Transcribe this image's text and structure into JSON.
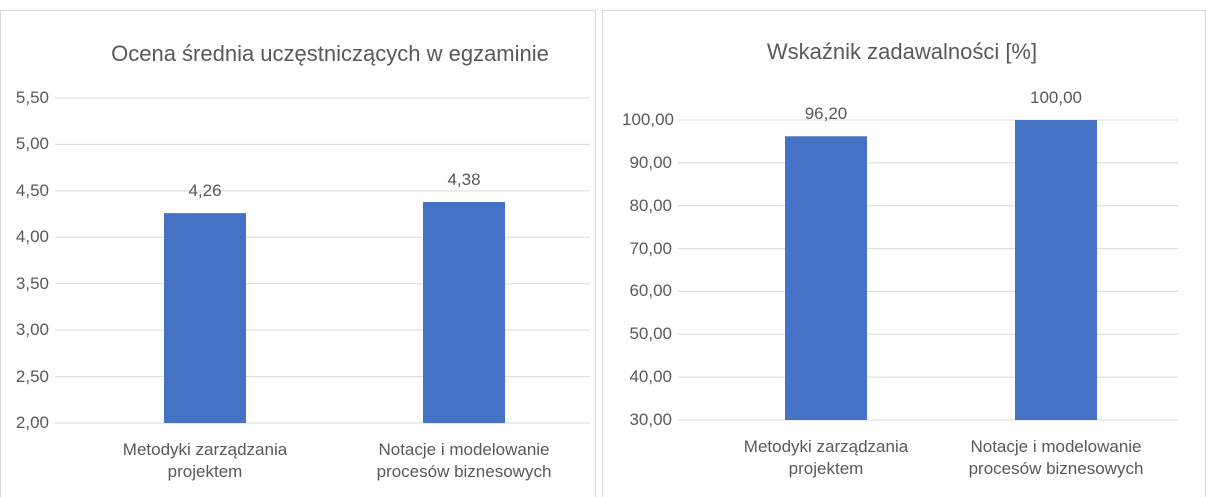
{
  "chart_data": [
    {
      "type": "bar",
      "title": "Ocena średnia uczęstniczących w egzaminie",
      "categories": [
        "Metodyki zarządzania projektem",
        "Notacje i modelowanie procesów biznesowych"
      ],
      "values": [
        4.26,
        4.38
      ],
      "value_labels": [
        "4,26",
        "4,38"
      ],
      "color": "#4472c4",
      "ylim": [
        2,
        5.5
      ],
      "yticks": [
        {
          "value": 2,
          "label": "2,00"
        },
        {
          "value": 2.5,
          "label": "2,50"
        },
        {
          "value": 3,
          "label": "3,00"
        },
        {
          "value": 3.5,
          "label": "3,50"
        },
        {
          "value": 4,
          "label": "4,00"
        },
        {
          "value": 4.5,
          "label": "4,50"
        },
        {
          "value": 5,
          "label": "5,00"
        },
        {
          "value": 5.5,
          "label": "5,50"
        }
      ],
      "grid": true
    },
    {
      "type": "bar",
      "title": "Wskaźnik zadawalności [%]",
      "categories": [
        "Metodyki zarządzania projektem",
        "Notacje i modelowanie procesów biznesowych"
      ],
      "values": [
        96.2,
        100
      ],
      "value_labels": [
        "96,20",
        "100,00"
      ],
      "color": "#4472c4",
      "ylim": [
        30,
        100
      ],
      "yticks": [
        {
          "value": 30,
          "label": "30,00"
        },
        {
          "value": 40,
          "label": "40,00"
        },
        {
          "value": 50,
          "label": "50,00"
        },
        {
          "value": 60,
          "label": "60,00"
        },
        {
          "value": 70,
          "label": "70,00"
        },
        {
          "value": 80,
          "label": "80,00"
        },
        {
          "value": 90,
          "label": "90,00"
        },
        {
          "value": 100,
          "label": "100,00"
        }
      ],
      "grid": true
    }
  ]
}
